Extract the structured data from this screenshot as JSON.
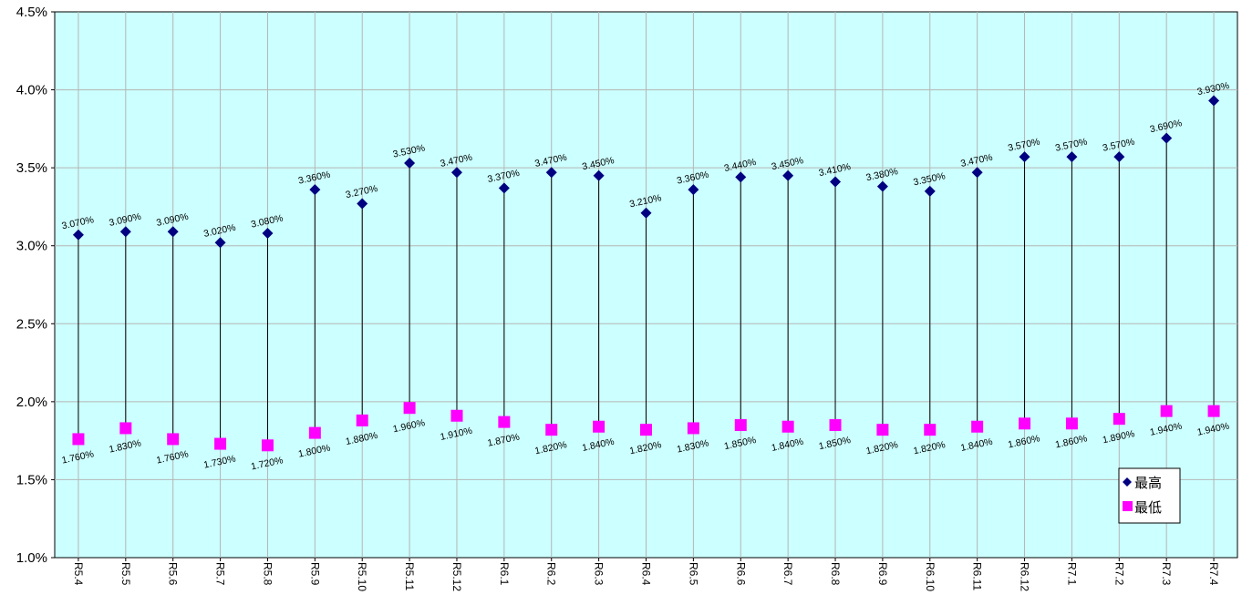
{
  "chart_data": {
    "type": "line",
    "title": "",
    "xlabel": "",
    "ylabel": "",
    "ylim": [
      0.01,
      0.045
    ],
    "y_ticks": [
      "1.0%",
      "1.5%",
      "2.0%",
      "2.5%",
      "3.0%",
      "3.5%",
      "4.0%",
      "4.5%"
    ],
    "grid": true,
    "legend_position": "bottom-right",
    "plot_background": "#CCFFFF",
    "categories": [
      "R5.4",
      "R5.5",
      "R5.6",
      "R5.7",
      "R5.8",
      "R5.9",
      "R5.10",
      "R5.11",
      "R5.12",
      "R6.1",
      "R6.2",
      "R6.3",
      "R6.4",
      "R6.5",
      "R6.6",
      "R6.7",
      "R6.8",
      "R6.9",
      "R6.10",
      "R6.11",
      "R6.12",
      "R7.1",
      "R7.2",
      "R7.3",
      "R7.4"
    ],
    "series": [
      {
        "name": "最高",
        "marker": "diamond",
        "color": "#000080",
        "values": [
          0.0307,
          0.0309,
          0.0309,
          0.0302,
          0.0308,
          0.0336,
          0.0327,
          0.0353,
          0.0347,
          0.0337,
          0.0347,
          0.0345,
          0.0321,
          0.0336,
          0.0344,
          0.0345,
          0.0341,
          0.0338,
          0.0335,
          0.0347,
          0.0357,
          0.0357,
          0.0357,
          0.0369,
          0.0393
        ],
        "labels": [
          "3.070%",
          "3.090%",
          "3.090%",
          "3.020%",
          "3.080%",
          "3.360%",
          "3.270%",
          "3.530%",
          "3.470%",
          "3.370%",
          "3.470%",
          "3.450%",
          "3.210%",
          "3.360%",
          "3.440%",
          "3.450%",
          "3.410%",
          "3.380%",
          "3.350%",
          "3.470%",
          "3.570%",
          "3.570%",
          "3.570%",
          "3.690%",
          "3.930%"
        ]
      },
      {
        "name": "最低",
        "marker": "square",
        "color": "#FF00FF",
        "values": [
          0.0176,
          0.0183,
          0.0176,
          0.0173,
          0.0172,
          0.018,
          0.0188,
          0.0196,
          0.0191,
          0.0187,
          0.0182,
          0.0184,
          0.0182,
          0.0183,
          0.0185,
          0.0184,
          0.0185,
          0.0182,
          0.0182,
          0.0184,
          0.0186,
          0.0186,
          0.0189,
          0.0194,
          0.0194
        ],
        "labels": [
          "1.760%",
          "1.830%",
          "1.760%",
          "1.730%",
          "1.720%",
          "1.800%",
          "1.880%",
          "1.960%",
          "1.910%",
          "1.870%",
          "1.820%",
          "1.840%",
          "1.820%",
          "1.830%",
          "1.850%",
          "1.840%",
          "1.850%",
          "1.820%",
          "1.820%",
          "1.840%",
          "1.860%",
          "1.860%",
          "1.890%",
          "1.940%",
          "1.940%"
        ]
      }
    ]
  }
}
